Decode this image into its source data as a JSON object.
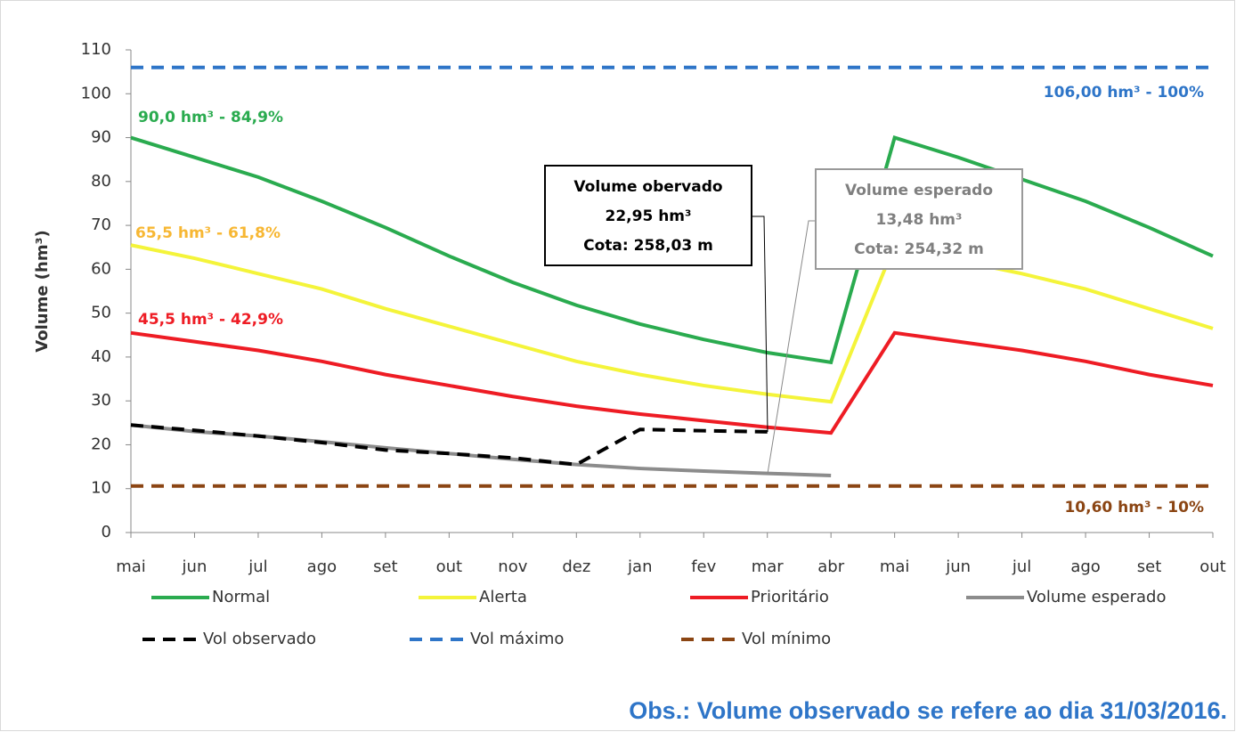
{
  "chart_data": {
    "type": "line",
    "y_label": "Volume (hm³)",
    "categories": [
      "mai",
      "jun",
      "jul",
      "ago",
      "set",
      "out",
      "nov",
      "dez",
      "jan",
      "fev",
      "mar",
      "abr",
      "mai",
      "jun",
      "jul",
      "ago",
      "set",
      "out"
    ],
    "ylim": [
      0,
      110
    ],
    "yticks": [
      0,
      10,
      20,
      30,
      40,
      50,
      60,
      70,
      80,
      90,
      100,
      110
    ],
    "series": [
      {
        "name": "Normal",
        "color": "#2aab4f",
        "dashed": false,
        "values": [
          90,
          85.5,
          81,
          75.5,
          69.5,
          63,
          57,
          51.8,
          47.5,
          44,
          41,
          38.8,
          90,
          85.5,
          80.5,
          75.5,
          69.5,
          63
        ]
      },
      {
        "name": "Alerta",
        "color": "#f4f43a",
        "dashed": false,
        "values": [
          65.5,
          62.5,
          59,
          55.5,
          51,
          47,
          43,
          39,
          36,
          33.5,
          31.5,
          29.8,
          65.5,
          62,
          59,
          55.5,
          51,
          46.5
        ]
      },
      {
        "name": "Prioritário",
        "color": "#ee1c24",
        "dashed": false,
        "values": [
          45.5,
          43.5,
          41.5,
          39,
          36,
          33.5,
          31,
          28.8,
          27,
          25.5,
          24,
          22.7,
          45.5,
          43.5,
          41.5,
          39,
          36,
          33.5
        ]
      },
      {
        "name": "Volume esperado",
        "color": "#8c8c8c",
        "dashed": false,
        "values": [
          24.5,
          23,
          22,
          20.7,
          19.3,
          18,
          16.7,
          15.5,
          14.6,
          14,
          13.48,
          13,
          null,
          null,
          null,
          null,
          null,
          null
        ]
      },
      {
        "name": "Vol observado",
        "color": "#000000",
        "dashed": true,
        "values": [
          24.5,
          23.3,
          22,
          20.5,
          18.8,
          18,
          17,
          15.5,
          23.5,
          23.2,
          22.95,
          null,
          null,
          null,
          null,
          null,
          null,
          null
        ]
      },
      {
        "name": "Vol máximo",
        "color": "#2e75c8",
        "dashed": true,
        "values": [
          106,
          106,
          106,
          106,
          106,
          106,
          106,
          106,
          106,
          106,
          106,
          106,
          106,
          106,
          106,
          106,
          106,
          106
        ]
      },
      {
        "name": "Vol mínimo",
        "color": "#8b4513",
        "dashed": true,
        "values": [
          10.6,
          10.6,
          10.6,
          10.6,
          10.6,
          10.6,
          10.6,
          10.6,
          10.6,
          10.6,
          10.6,
          10.6,
          10.6,
          10.6,
          10.6,
          10.6,
          10.6,
          10.6
        ]
      }
    ],
    "annotations": [
      {
        "text": "90,0 hm³ - 84,9%",
        "color": "#2aab4f"
      },
      {
        "text": "65,5 hm³ - 61,8%",
        "color": "#f7b733"
      },
      {
        "text": "45,5 hm³ - 42,9%",
        "color": "#ee1c24"
      },
      {
        "text": "106,00 hm³ - 100%",
        "color": "#2e75c8"
      },
      {
        "text": "10,60 hm³ - 10%",
        "color": "#8b4513"
      }
    ],
    "callouts": [
      {
        "lines": [
          "Volume obervado",
          "22,95 hm³",
          "Cota: 258,03 m"
        ],
        "color": "#000000"
      },
      {
        "lines": [
          "Volume esperado",
          "13,48 hm³",
          "Cota: 254,32 m"
        ],
        "color": "#7f7f7f"
      }
    ],
    "note": "Obs.: Volume observado se refere ao dia 31/03/2016."
  }
}
